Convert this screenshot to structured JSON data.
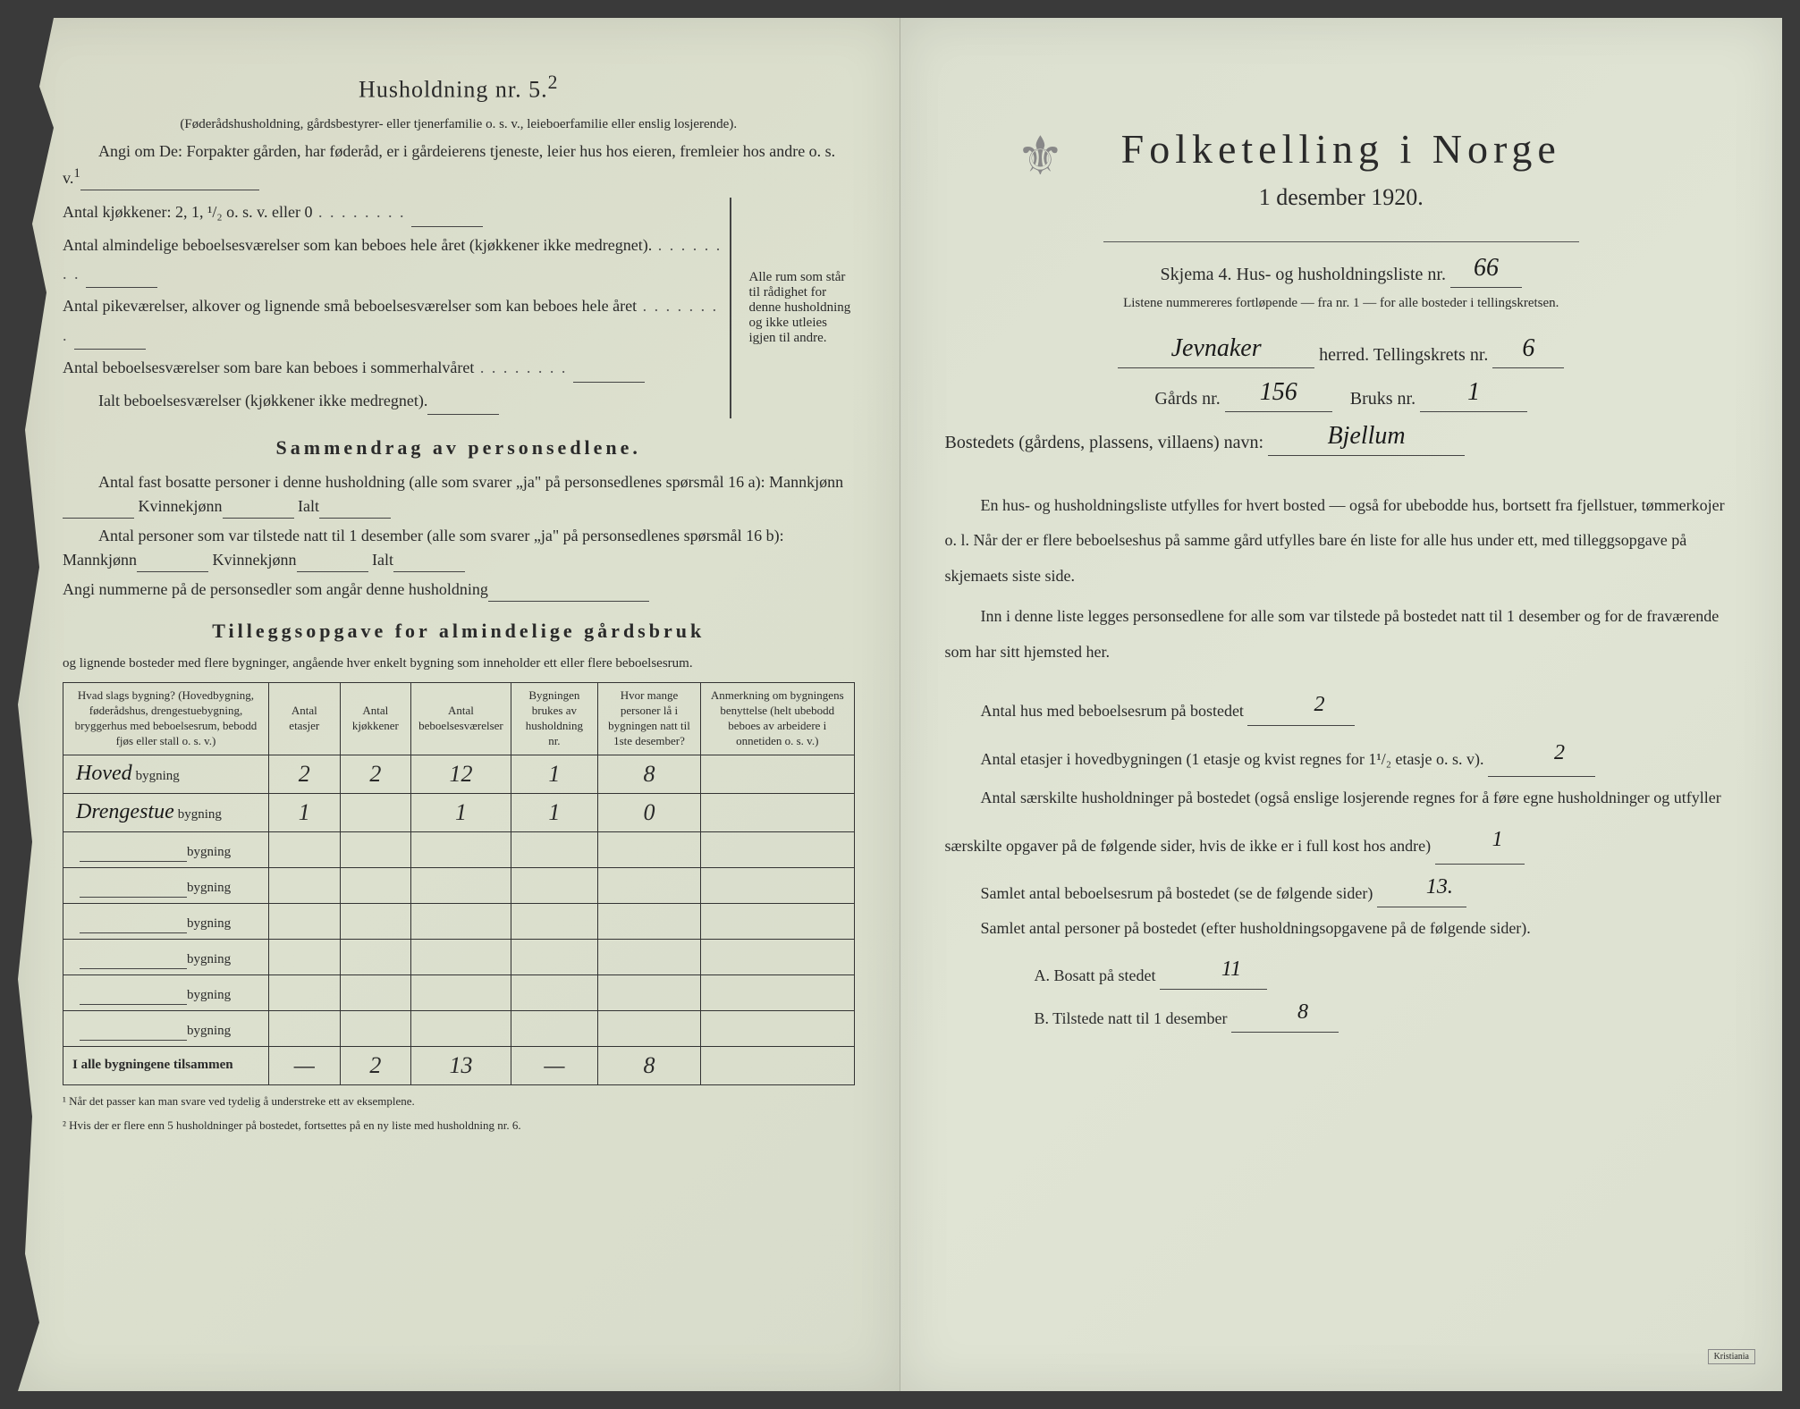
{
  "left": {
    "title": "Husholdning nr. 5.",
    "title_sup": "2",
    "subtitle": "(Føderådshusholdning, gårdsbestyrer- eller tjenerfamilie o. s. v., leieboerfamilie eller enslig losjerende).",
    "para1": "Angi om De: Forpakter gården, har føderåd, er i gårdeierens tjeneste, leier hus hos eieren, fremleier hos andre o. s. v.",
    "sup1": "1",
    "room_lines": [
      "Antal kjøkkener: 2, 1, ¹/₂ o. s. v. eller 0",
      "Antal almindelige beboelsesværelser som kan beboes hele året (kjøkkener ikke medregnet).",
      "Antal pikeværelser, alkover og lignende små beboelsesværelser som kan beboes hele året",
      "Antal beboelsesværelser som bare kan beboes i sommerhalvåret"
    ],
    "room_sum": "Ialt beboelsesværelser (kjøkkener ikke medregnet).",
    "brace_right": "Alle rum som står til rådighet for denne husholdning og ikke utleies igjen til andre.",
    "sammendrag_title": "Sammendrag av personsedlene.",
    "sam_p1": "Antal fast bosatte personer i denne husholdning (alle som svarer „ja\" på personsedlenes spørsmål 16 a): Mannkjønn",
    "sam_kv": "Kvinnekjønn",
    "sam_ialt": "Ialt",
    "sam_p2": "Antal personer som var tilstede natt til 1 desember (alle som svarer „ja\" på personsedlenes spørsmål 16 b): Mannkjønn",
    "sam_p3": "Angi nummerne på de personsedler som angår denne husholdning",
    "tillegg_title": "Tilleggsopgave for almindelige gårdsbruk",
    "tillegg_sub": "og lignende bosteder med flere bygninger, angående hver enkelt bygning som inneholder ett eller flere beboelsesrum.",
    "table": {
      "headers": [
        "Hvad slags bygning?\n(Hovedbygning, føderådshus, drengestuebygning, bryggerhus med beboelsesrum, bebodd fjøs eller stall o. s. v.)",
        "Antal etasjer",
        "Antal kjøkkener",
        "Antal beboelsesværelser",
        "Bygningen brukes av husholdning nr.",
        "Hvor mange personer lå i bygningen natt til 1ste desember?",
        "Anmerkning om bygningens benyttelse (helt ubebodd beboes av arbeidere i onnetiden o. s. v.)"
      ],
      "rows": [
        {
          "name": "Hoved",
          "suffix": "bygning",
          "etasjer": "2",
          "kjokken": "2",
          "beboelse": "12",
          "hushold": "1",
          "personer": "8",
          "anm": ""
        },
        {
          "name": "Drengestue",
          "suffix": "bygning",
          "etasjer": "1",
          "kjokken": "",
          "beboelse": "1",
          "hushold": "1",
          "personer": "0",
          "anm": ""
        },
        {
          "name": "",
          "suffix": "bygning",
          "etasjer": "",
          "kjokken": "",
          "beboelse": "",
          "hushold": "",
          "personer": "",
          "anm": ""
        },
        {
          "name": "",
          "suffix": "bygning",
          "etasjer": "",
          "kjokken": "",
          "beboelse": "",
          "hushold": "",
          "personer": "",
          "anm": ""
        },
        {
          "name": "",
          "suffix": "bygning",
          "etasjer": "",
          "kjokken": "",
          "beboelse": "",
          "hushold": "",
          "personer": "",
          "anm": ""
        },
        {
          "name": "",
          "suffix": "bygning",
          "etasjer": "",
          "kjokken": "",
          "beboelse": "",
          "hushold": "",
          "personer": "",
          "anm": ""
        },
        {
          "name": "",
          "suffix": "bygning",
          "etasjer": "",
          "kjokken": "",
          "beboelse": "",
          "hushold": "",
          "personer": "",
          "anm": ""
        },
        {
          "name": "",
          "suffix": "bygning",
          "etasjer": "",
          "kjokken": "",
          "beboelse": "",
          "hushold": "",
          "personer": "",
          "anm": ""
        }
      ],
      "total_label": "I alle bygningene tilsammen",
      "totals": {
        "etasjer": "—",
        "kjokken": "2",
        "beboelse": "13",
        "hushold": "—",
        "personer": "8",
        "anm": ""
      }
    },
    "footnote1": "¹ Når det passer kan man svare ved tydelig å understreke ett av eksemplene.",
    "footnote2": "² Hvis der er flere enn 5 husholdninger på bostedet, fortsettes på en ny liste med husholdning nr. 6."
  },
  "right": {
    "crest": "⚜",
    "title": "Folketelling i Norge",
    "date": "1 desember 1920.",
    "skjema_label": "Skjema 4.  Hus- og husholdningsliste nr.",
    "skjema_nr": "66",
    "listene": "Listene nummereres fortløpende — fra nr. 1 — for alle bosteder i tellingskretsen.",
    "herred_val": "Jevnaker",
    "herred_label": "herred.  Tellingskrets nr.",
    "krets_nr": "6",
    "gards_label": "Gårds nr.",
    "gards_nr": "156",
    "bruks_label": "Bruks nr.",
    "bruks_nr": "1",
    "bosted_label": "Bostedets (gårdens, plassens, villaens) navn:",
    "bosted_val": "Bjellum",
    "para1": "En hus- og husholdningsliste utfylles for hvert bosted — også for ubebodde hus, bortsett fra fjellstuer, tømmerkojer o. l. Når der er flere beboelseshus på samme gård utfylles bare én liste for alle hus under ett, med tilleggsopgave på skjemaets siste side.",
    "para2": "Inn i denne liste legges personsedlene for alle som var tilstede på bostedet natt til 1 desember og for de fraværende som har sitt hjemsted her.",
    "antal_hus_label": "Antal hus med beboelsesrum på bostedet",
    "antal_hus_val": "2",
    "antal_etasjer_label": "Antal etasjer i hovedbygningen (1 etasje og kvist regnes for 1¹/₂ etasje o. s. v).",
    "antal_etasjer_val": "2",
    "saerskilte_label": "Antal særskilte husholdninger på bostedet (også enslige losjerende regnes for å føre egne husholdninger og utfyller særskilte opgaver på de følgende sider, hvis de ikke er i full kost hos andre)",
    "saerskilte_val": "1",
    "samlet_rum_label": "Samlet antal beboelsesrum på bostedet (se de følgende sider)",
    "samlet_rum_val": "13.",
    "samlet_pers_label": "Samlet antal personer på bostedet (efter husholdningsopgavene på de følgende sider).",
    "bosatt_label": "A.  Bosatt på stedet",
    "bosatt_val": "11",
    "tilstede_label": "B.  Tilstede natt til 1 desember",
    "tilstede_val": "8"
  },
  "colors": {
    "paper": "#dce0ce",
    "ink": "#2a2a2a",
    "handwriting": "#1a1a1a",
    "background": "#3a3a3a"
  }
}
